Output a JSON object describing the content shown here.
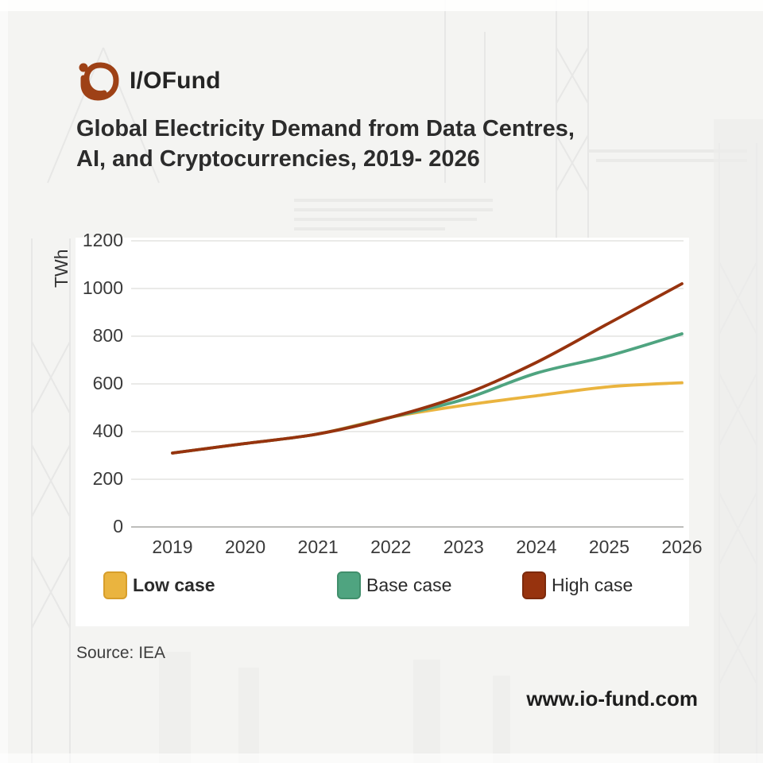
{
  "logo": {
    "text": "I/OFund"
  },
  "title_line1": "Global Electricity Demand from Data Centres,",
  "title_line2": "AI, and Cryptocurrencies, 2019- 2026",
  "source": "Source: IEA",
  "website": "www.io-fund.com",
  "colors": {
    "logo_mark": "#9e4116",
    "grid": "#e3e3e1",
    "baseline": "#bdbdbb",
    "tick_text": "#3a3a3a"
  },
  "chart_data": {
    "type": "line",
    "title": "Global Electricity Demand from Data Centres, AI, and Cryptocurrencies, 2019- 2026",
    "xlabel": "",
    "ylabel": "TWh",
    "x": [
      2019,
      2020,
      2021,
      2022,
      2023,
      2024,
      2025,
      2026
    ],
    "ylim": [
      0,
      1200
    ],
    "yticks": [
      0,
      200,
      400,
      600,
      800,
      1000,
      1200
    ],
    "grid": true,
    "legend_position": "bottom",
    "series": [
      {
        "name": "Low case",
        "color": "#EAB43F",
        "border": "#D79E2B",
        "values": [
          310,
          350,
          390,
          460,
          510,
          550,
          588,
          605
        ]
      },
      {
        "name": "Base case",
        "color": "#4FA480",
        "border": "#418F6C",
        "values": [
          310,
          350,
          390,
          460,
          535,
          645,
          718,
          810
        ]
      },
      {
        "name": "High case",
        "color": "#97330E",
        "border": "#7C2A0C",
        "values": [
          310,
          350,
          390,
          460,
          555,
          690,
          855,
          1020
        ]
      }
    ]
  }
}
